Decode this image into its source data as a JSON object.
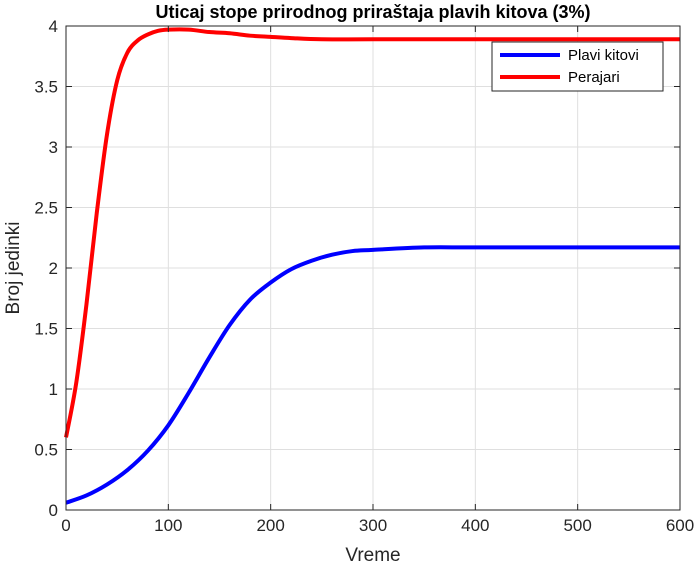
{
  "chart_data": {
    "type": "line",
    "title": "Uticaj stope prirodnog priraštaja plavih kitova (3%)",
    "xlabel": "Vreme",
    "ylabel": "Broj jedinki",
    "xlim": [
      0,
      600
    ],
    "ylim": [
      0,
      4
    ],
    "xticks": [
      0,
      100,
      200,
      300,
      400,
      500,
      600
    ],
    "yticks": [
      0,
      0.5,
      1,
      1.5,
      2,
      2.5,
      3,
      3.5,
      4
    ],
    "xtick_labels": [
      "0",
      "100",
      "200",
      "300",
      "400",
      "500",
      "600"
    ],
    "ytick_labels": [
      "0",
      "0.5",
      "1",
      "1.5",
      "2",
      "2.5",
      "3",
      "3.5",
      "4"
    ],
    "grid": true,
    "legend_position": "top-right",
    "series": [
      {
        "name": "Plavi kitovi",
        "color": "#0000ff",
        "x": [
          0,
          20,
          40,
          60,
          80,
          100,
          120,
          140,
          160,
          180,
          200,
          220,
          240,
          260,
          280,
          300,
          350,
          400,
          500,
          600
        ],
        "y": [
          0.06,
          0.12,
          0.21,
          0.33,
          0.49,
          0.7,
          0.97,
          1.26,
          1.53,
          1.74,
          1.88,
          1.99,
          2.06,
          2.11,
          2.14,
          2.15,
          2.17,
          2.17,
          2.17,
          2.17
        ]
      },
      {
        "name": "Perajari",
        "color": "#ff0000",
        "x": [
          0,
          10,
          20,
          30,
          40,
          50,
          60,
          70,
          80,
          90,
          100,
          120,
          140,
          160,
          180,
          200,
          220,
          250,
          300,
          400,
          500,
          600
        ],
        "y": [
          0.6,
          1.05,
          1.7,
          2.45,
          3.1,
          3.55,
          3.78,
          3.88,
          3.93,
          3.96,
          3.97,
          3.97,
          3.95,
          3.94,
          3.92,
          3.91,
          3.9,
          3.89,
          3.89,
          3.89,
          3.89,
          3.89
        ]
      }
    ]
  }
}
